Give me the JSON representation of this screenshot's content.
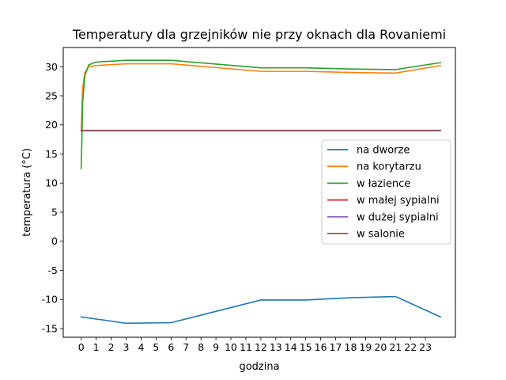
{
  "chart_data": {
    "type": "line",
    "title": "Temperatury dla grzejników nie przy oknach dla Rovaniemi",
    "xlabel": "godzina",
    "ylabel": "temperatura (°C)",
    "xlim": [
      -1.2,
      25.0
    ],
    "ylim": [
      -16.5,
      33.3
    ],
    "xticks": [
      0,
      1,
      2,
      3,
      4,
      5,
      6,
      7,
      8,
      9,
      10,
      11,
      12,
      13,
      14,
      15,
      16,
      17,
      18,
      19,
      20,
      21,
      22,
      23
    ],
    "yticks": [
      -15,
      -10,
      -5,
      0,
      5,
      10,
      15,
      20,
      25,
      30
    ],
    "ytick_labels": [
      "-15",
      "-10",
      "-5",
      "0",
      "5",
      "10",
      "15",
      "20",
      "25",
      "30"
    ],
    "legend_position": "center-right",
    "series": [
      {
        "name": "na dworze",
        "color": "#1f77b4",
        "x": [
          0,
          3,
          6,
          12,
          15,
          18,
          21,
          24
        ],
        "y": [
          -13.0,
          -14.1,
          -14.0,
          -10.1,
          -10.1,
          -9.7,
          -9.5,
          -13.0
        ]
      },
      {
        "name": "na korytarzu",
        "color": "#ff7f0e",
        "x": [
          0,
          0.1,
          0.25,
          0.5,
          1,
          3,
          6,
          12,
          15,
          18,
          21,
          24
        ],
        "y": [
          19.0,
          26.5,
          29.0,
          30.0,
          30.2,
          30.5,
          30.5,
          29.2,
          29.2,
          29.0,
          28.9,
          30.2
        ]
      },
      {
        "name": "w łazience",
        "color": "#2ca02c",
        "x": [
          0,
          0.1,
          0.25,
          0.5,
          1,
          3,
          6,
          12,
          15,
          18,
          21,
          24
        ],
        "y": [
          12.5,
          24.0,
          28.5,
          30.3,
          30.8,
          31.1,
          31.1,
          29.8,
          29.8,
          29.6,
          29.5,
          30.7
        ]
      },
      {
        "name": "w małej sypialni",
        "color": "#d62728",
        "x": [
          0,
          6,
          12,
          18,
          24
        ],
        "y": [
          19.0,
          19.0,
          19.0,
          19.0,
          19.0
        ]
      },
      {
        "name": "w dużej sypialni",
        "color": "#9467bd",
        "x": [
          0,
          6,
          12,
          18,
          24
        ],
        "y": [
          19.0,
          19.0,
          19.0,
          19.0,
          19.0
        ]
      },
      {
        "name": "w salonie",
        "color": "#8c564b",
        "x": [
          0,
          6,
          12,
          18,
          24
        ],
        "y": [
          19.05,
          19.05,
          19.05,
          19.05,
          19.05
        ]
      }
    ]
  }
}
